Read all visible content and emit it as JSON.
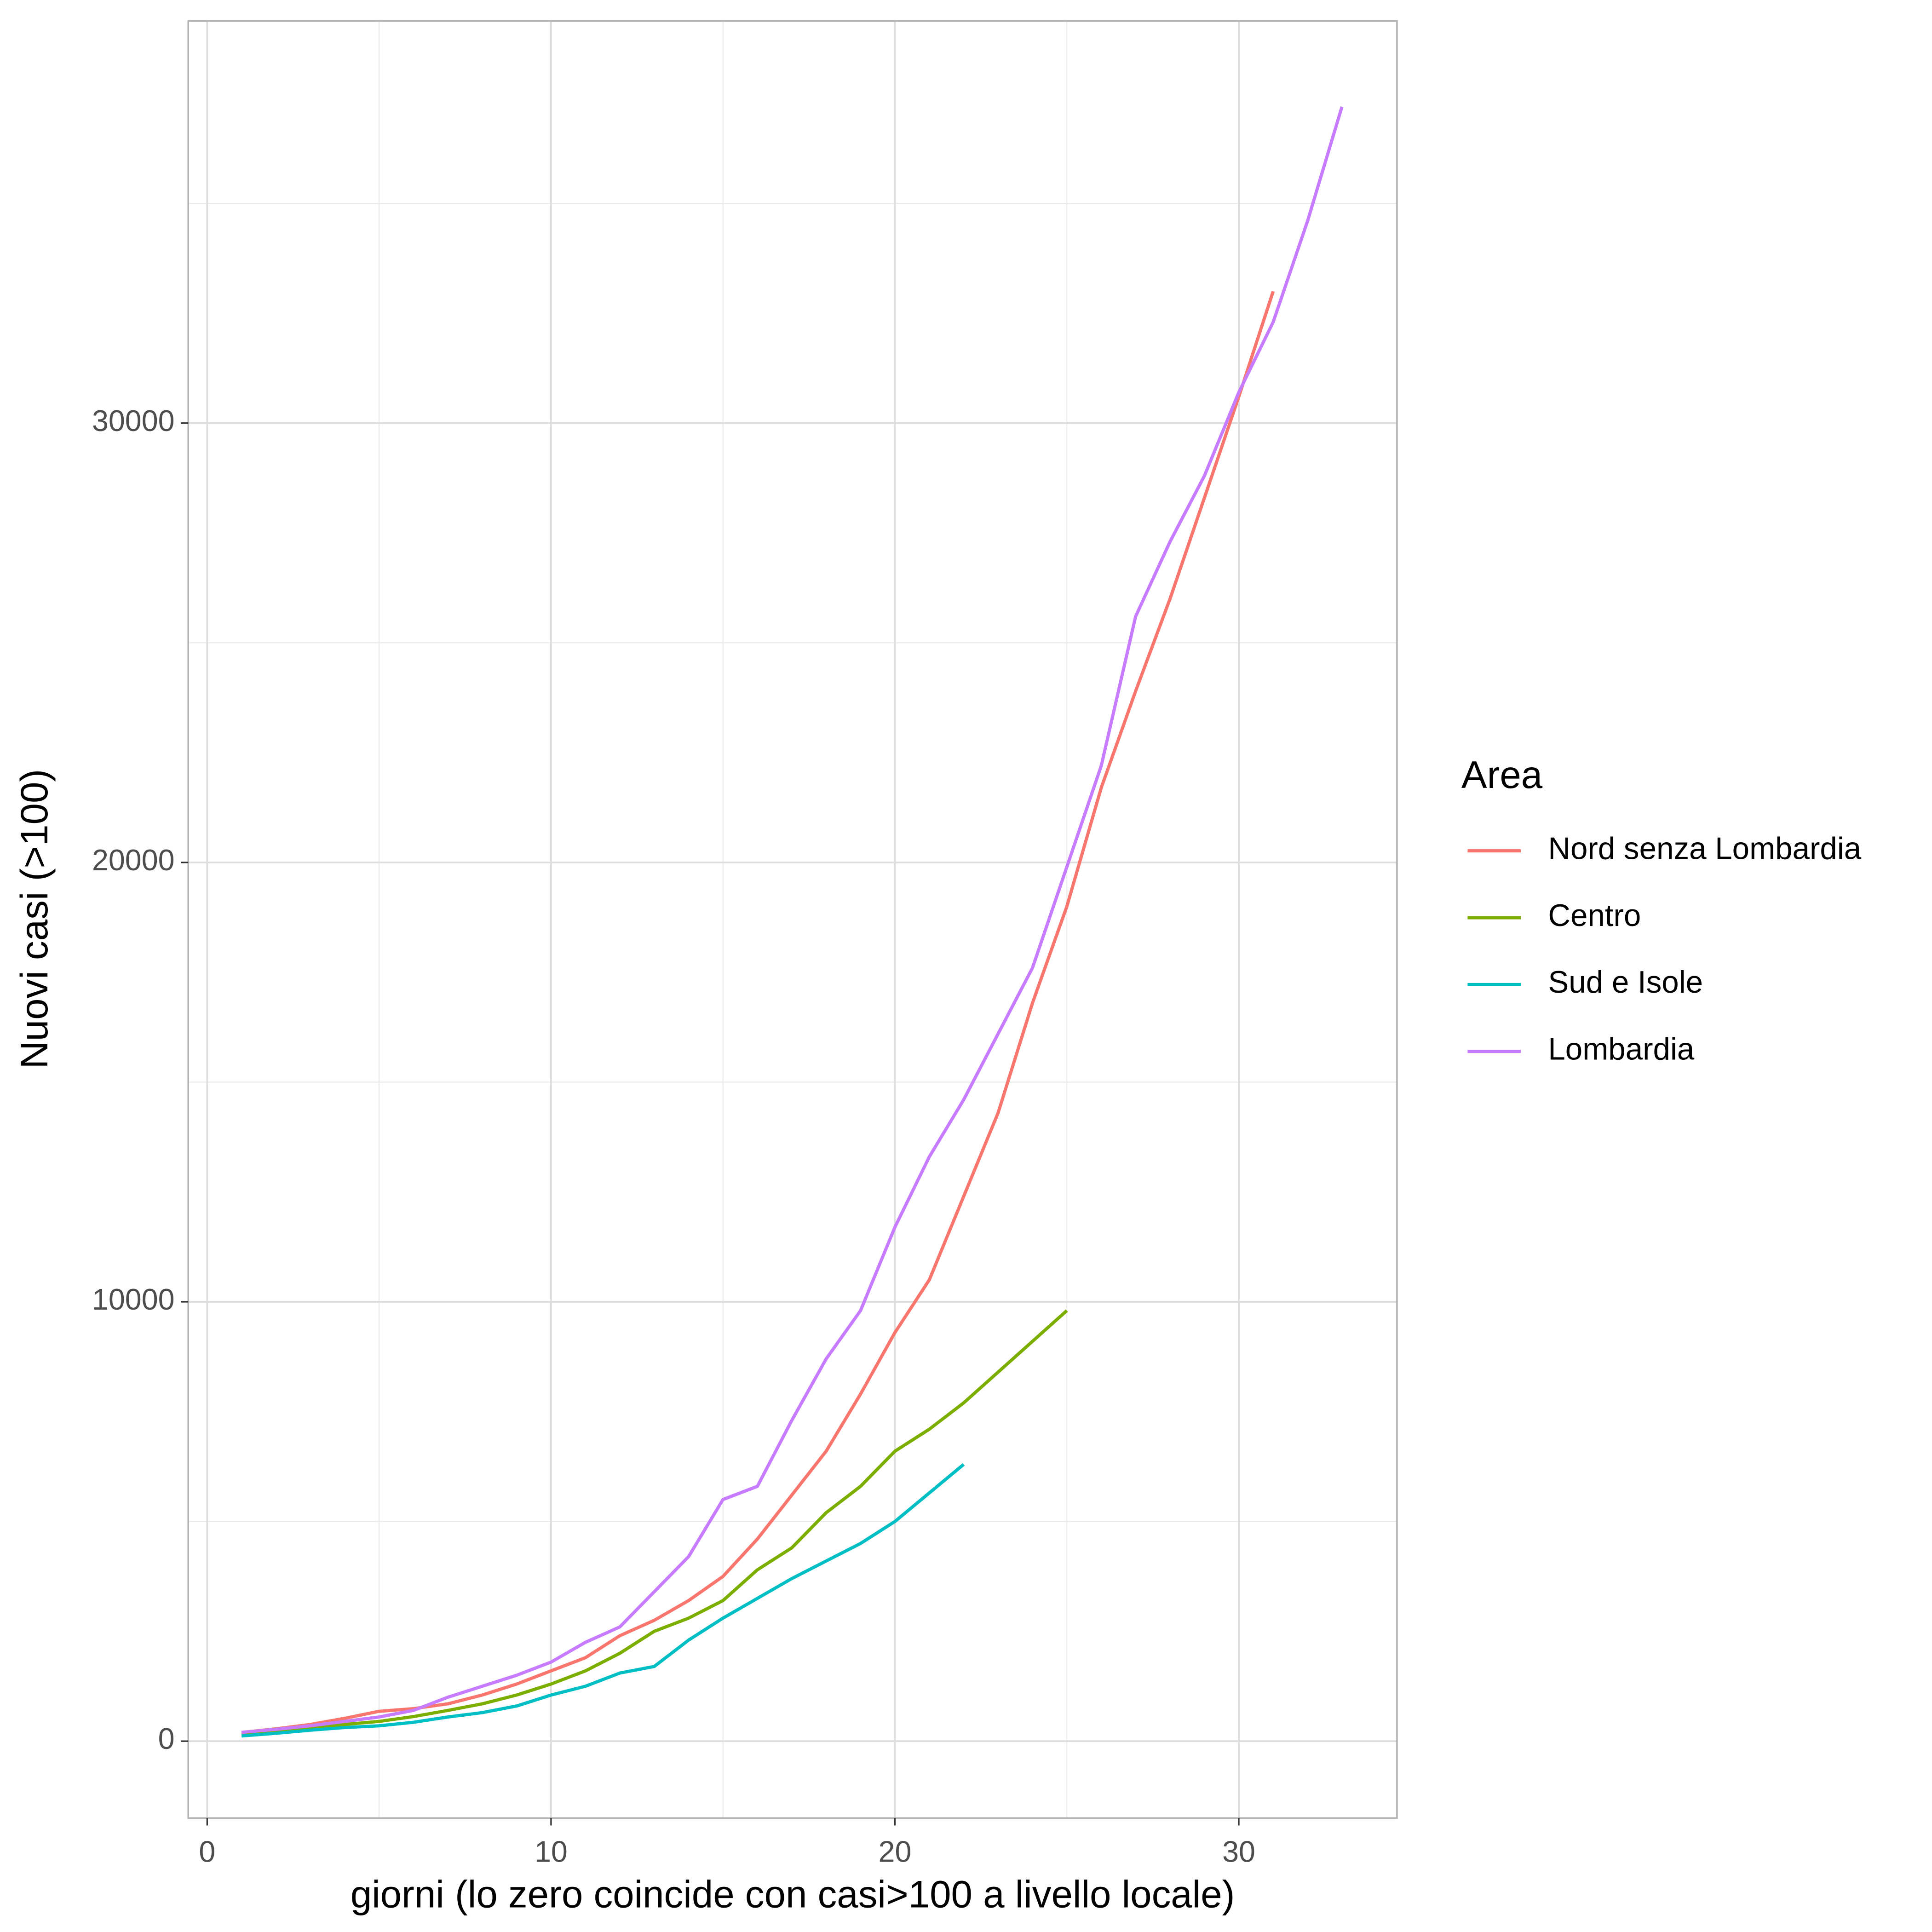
{
  "chart_data": {
    "type": "line",
    "x_label": "giorni (lo zero coincide con casi>100 a livello locale)",
    "y_label": "Nuovi casi (>100)",
    "legend_title": "Area",
    "legend_position": "right",
    "grid": true,
    "minor_grid": true,
    "x": [
      1,
      2,
      3,
      4,
      5,
      6,
      7,
      8,
      9,
      10,
      11,
      12,
      13,
      14,
      15,
      16,
      17,
      18,
      19,
      20,
      21,
      22,
      23,
      24,
      25,
      26,
      27,
      28,
      29,
      30,
      31,
      32,
      33
    ],
    "xlim": [
      -0.55,
      34.6
    ],
    "xticks": [
      0,
      10,
      20,
      30
    ],
    "ylim": [
      -1750,
      39150
    ],
    "yticks": [
      0,
      10000,
      20000,
      30000
    ],
    "series": [
      {
        "name": "Nord senza Lombardia",
        "color": "#F8766D",
        "values": [
          200,
          280,
          380,
          520,
          680,
          740,
          850,
          1050,
          1300,
          1600,
          1900,
          2400,
          2750,
          3200,
          3750,
          4600,
          5600,
          6600,
          7900,
          9300,
          10500,
          12400,
          14300,
          16800,
          19000,
          21700,
          23900,
          26000,
          28300,
          30600,
          33000,
          null,
          null
        ]
      },
      {
        "name": "Centro",
        "color": "#7CAE00",
        "values": [
          150,
          220,
          300,
          380,
          450,
          560,
          700,
          850,
          1050,
          1300,
          1600,
          2000,
          2500,
          2800,
          3200,
          3900,
          4400,
          5200,
          5800,
          6600,
          7100,
          7700,
          8400,
          9100,
          9800,
          null,
          null,
          null,
          null,
          null,
          null,
          null,
          null
        ]
      },
      {
        "name": "Sud e Isole",
        "color": "#00BFC4",
        "values": [
          120,
          180,
          250,
          310,
          350,
          430,
          550,
          650,
          800,
          1050,
          1250,
          1550,
          1700,
          2300,
          2800,
          3250,
          3700,
          4100,
          4500,
          5000,
          5650,
          6300,
          null,
          null,
          null,
          null,
          null,
          null,
          null,
          null,
          null,
          null,
          null
        ]
      },
      {
        "name": "Lombardia",
        "color": "#C77CFF",
        "values": [
          200,
          270,
          350,
          450,
          550,
          700,
          1000,
          1250,
          1500,
          1800,
          2250,
          2600,
          3400,
          4200,
          5500,
          5800,
          7300,
          8700,
          9800,
          11700,
          13300,
          14600,
          16100,
          17600,
          19900,
          22200,
          25600,
          27300,
          28800,
          30700,
          32300,
          34600,
          37200
        ]
      }
    ]
  }
}
